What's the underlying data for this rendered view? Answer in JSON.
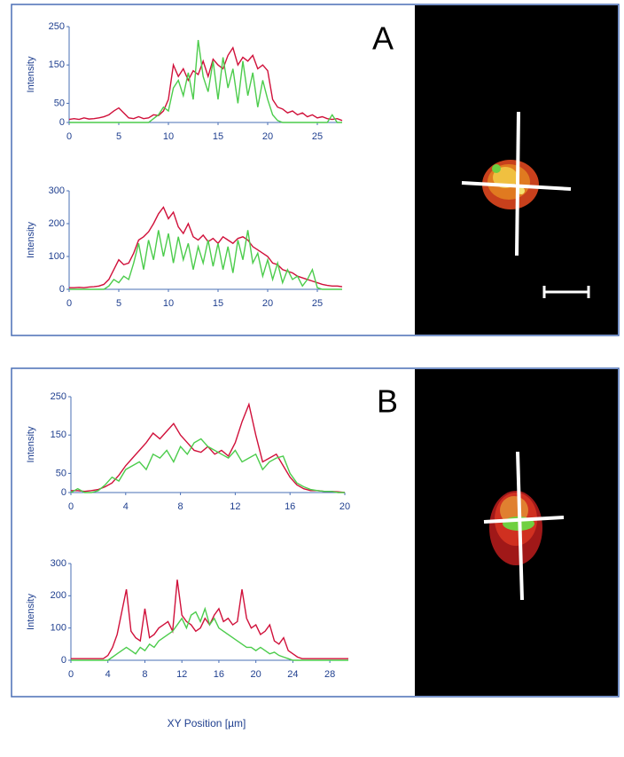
{
  "panel_labels": [
    "A",
    "B"
  ],
  "x_axis_label": "XY Position [µm]",
  "chart_data": [
    {
      "type": "line",
      "ylabel": "Intensity",
      "x": [
        0,
        0.5,
        1,
        1.5,
        2,
        2.5,
        3,
        3.5,
        4,
        4.5,
        5,
        5.5,
        6,
        6.5,
        7,
        7.5,
        8,
        8.5,
        9,
        9.5,
        10,
        10.5,
        11,
        11.5,
        12,
        12.5,
        13,
        13.5,
        14,
        14.5,
        15,
        15.5,
        16,
        16.5,
        17,
        17.5,
        18,
        18.5,
        19,
        19.5,
        20,
        20.5,
        21,
        21.5,
        22,
        22.5,
        23,
        23.5,
        24,
        24.5,
        25,
        25.5,
        26,
        26.5,
        27,
        27.5
      ],
      "series": [
        {
          "color": "#d0103a",
          "values": [
            8,
            10,
            8,
            12,
            9,
            10,
            12,
            15,
            20,
            30,
            38,
            25,
            12,
            10,
            15,
            10,
            12,
            20,
            18,
            30,
            60,
            150,
            120,
            140,
            110,
            135,
            125,
            160,
            120,
            165,
            150,
            140,
            175,
            195,
            150,
            170,
            160,
            175,
            140,
            150,
            135,
            60,
            40,
            35,
            25,
            30,
            20,
            25,
            15,
            20,
            12,
            15,
            10,
            8,
            10,
            5
          ]
        },
        {
          "color": "#4ccc4c",
          "values": [
            0,
            0,
            0,
            0,
            0,
            0,
            0,
            0,
            0,
            0,
            0,
            0,
            0,
            0,
            0,
            0,
            0,
            10,
            20,
            40,
            30,
            90,
            110,
            70,
            130,
            60,
            215,
            120,
            80,
            160,
            60,
            170,
            90,
            140,
            50,
            160,
            70,
            130,
            40,
            110,
            60,
            20,
            5,
            0,
            0,
            0,
            0,
            0,
            0,
            0,
            0,
            0,
            0,
            20,
            0,
            0
          ]
        }
      ],
      "xlim": [
        0,
        27.5
      ],
      "xticks": [
        0,
        5,
        10,
        15,
        20,
        25
      ],
      "ylim": [
        0,
        250
      ],
      "yticks": [
        0,
        50,
        150,
        250
      ]
    },
    {
      "type": "line",
      "ylabel": "Intensity",
      "x": [
        0,
        0.5,
        1,
        1.5,
        2,
        2.5,
        3,
        3.5,
        4,
        4.5,
        5,
        5.5,
        6,
        6.5,
        7,
        7.5,
        8,
        8.5,
        9,
        9.5,
        10,
        10.5,
        11,
        11.5,
        12,
        12.5,
        13,
        13.5,
        14,
        14.5,
        15,
        15.5,
        16,
        16.5,
        17,
        17.5,
        18,
        18.5,
        19,
        19.5,
        20,
        20.5,
        21,
        21.5,
        22,
        22.5,
        23,
        23.5,
        24,
        24.5,
        25,
        25.5,
        26,
        26.5,
        27,
        27.5
      ],
      "series": [
        {
          "color": "#d0103a",
          "values": [
            5,
            5,
            6,
            5,
            7,
            8,
            10,
            15,
            30,
            60,
            90,
            75,
            80,
            110,
            150,
            160,
            175,
            200,
            230,
            250,
            215,
            235,
            190,
            170,
            200,
            160,
            150,
            165,
            145,
            155,
            140,
            160,
            150,
            140,
            155,
            160,
            150,
            130,
            120,
            110,
            100,
            80,
            75,
            60,
            55,
            50,
            40,
            35,
            30,
            25,
            20,
            15,
            12,
            10,
            10,
            8
          ]
        },
        {
          "color": "#4ccc4c",
          "values": [
            0,
            0,
            0,
            0,
            0,
            0,
            0,
            0,
            10,
            30,
            20,
            40,
            30,
            80,
            140,
            60,
            150,
            90,
            180,
            100,
            170,
            80,
            160,
            90,
            140,
            60,
            130,
            80,
            150,
            70,
            140,
            60,
            130,
            50,
            150,
            90,
            180,
            80,
            110,
            40,
            90,
            30,
            80,
            20,
            60,
            30,
            40,
            10,
            30,
            60,
            5,
            0,
            0,
            0,
            0,
            0
          ]
        }
      ],
      "xlim": [
        0,
        27.5
      ],
      "xticks": [
        0,
        5,
        10,
        15,
        20,
        25
      ],
      "ylim": [
        0,
        300
      ],
      "yticks": [
        0,
        100,
        200,
        300
      ]
    },
    {
      "type": "line",
      "ylabel": "Intensity",
      "x": [
        0,
        0.5,
        1,
        1.5,
        2,
        2.5,
        3,
        3.5,
        4,
        4.5,
        5,
        5.5,
        6,
        6.5,
        7,
        7.5,
        8,
        8.5,
        9,
        9.5,
        10,
        10.5,
        11,
        11.5,
        12,
        12.5,
        13,
        13.5,
        14,
        14.5,
        15,
        15.5,
        16,
        16.5,
        17,
        17.5,
        18,
        18.5,
        19,
        19.5,
        20
      ],
      "series": [
        {
          "color": "#d0103a",
          "values": [
            5,
            5,
            3,
            5,
            8,
            15,
            25,
            45,
            70,
            90,
            110,
            130,
            155,
            140,
            160,
            180,
            150,
            130,
            110,
            105,
            120,
            100,
            110,
            95,
            130,
            185,
            230,
            150,
            80,
            90,
            100,
            70,
            40,
            20,
            10,
            5,
            5,
            3,
            3,
            2,
            0
          ]
        },
        {
          "color": "#4ccc4c",
          "values": [
            0,
            10,
            0,
            0,
            5,
            20,
            40,
            30,
            60,
            70,
            80,
            60,
            100,
            90,
            110,
            80,
            120,
            100,
            130,
            140,
            120,
            110,
            100,
            90,
            110,
            80,
            90,
            100,
            60,
            80,
            90,
            95,
            50,
            25,
            15,
            8,
            5,
            3,
            3,
            0,
            0
          ]
        }
      ],
      "xlim": [
        0,
        20
      ],
      "xticks": [
        0,
        4,
        8,
        12,
        16,
        20
      ],
      "ylim": [
        0,
        250
      ],
      "yticks": [
        0,
        50,
        150,
        250
      ]
    },
    {
      "type": "line",
      "ylabel": "Intensity",
      "x": [
        0,
        0.5,
        1,
        1.5,
        2,
        2.5,
        3,
        3.5,
        4,
        4.5,
        5,
        5.5,
        6,
        6.5,
        7,
        7.5,
        8,
        8.5,
        9,
        9.5,
        10,
        10.5,
        11,
        11.5,
        12,
        12.5,
        13,
        13.5,
        14,
        14.5,
        15,
        15.5,
        16,
        16.5,
        17,
        17.5,
        18,
        18.5,
        19,
        19.5,
        20,
        20.5,
        21,
        21.5,
        22,
        22.5,
        23,
        23.5,
        24,
        24.5,
        25,
        25.5,
        26,
        26.5,
        27,
        27.5,
        28,
        28.5,
        29,
        29.5,
        30
      ],
      "series": [
        {
          "color": "#d0103a",
          "values": [
            5,
            5,
            5,
            5,
            5,
            5,
            5,
            5,
            15,
            40,
            80,
            150,
            220,
            90,
            70,
            60,
            160,
            70,
            80,
            100,
            110,
            120,
            90,
            250,
            140,
            120,
            110,
            90,
            100,
            130,
            110,
            140,
            160,
            120,
            130,
            110,
            120,
            220,
            130,
            100,
            110,
            80,
            90,
            110,
            60,
            50,
            70,
            30,
            20,
            10,
            5,
            5,
            5,
            5,
            5,
            5,
            5,
            5,
            5,
            5,
            5
          ]
        },
        {
          "color": "#4ccc4c",
          "values": [
            0,
            0,
            0,
            0,
            0,
            0,
            0,
            0,
            0,
            10,
            20,
            30,
            40,
            30,
            20,
            40,
            30,
            50,
            40,
            60,
            70,
            80,
            90,
            110,
            130,
            100,
            140,
            150,
            120,
            160,
            110,
            130,
            100,
            90,
            80,
            70,
            60,
            50,
            40,
            40,
            30,
            40,
            30,
            20,
            25,
            15,
            10,
            5,
            0,
            0,
            0,
            0,
            0,
            0,
            0,
            0,
            0,
            0,
            0,
            0,
            0
          ]
        }
      ],
      "xlim": [
        0,
        30
      ],
      "xticks": [
        0,
        4,
        8,
        12,
        16,
        20,
        24,
        28
      ],
      "ylim": [
        0,
        300
      ],
      "yticks": [
        0,
        100,
        200,
        300
      ]
    }
  ]
}
